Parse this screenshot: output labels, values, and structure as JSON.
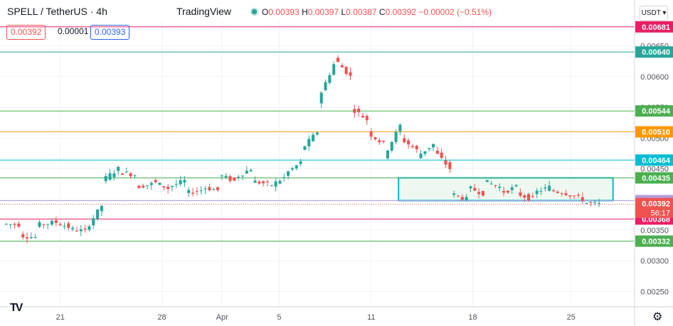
{
  "header": {
    "symbol_title": "SPELL / TetherUS · 4h",
    "brand": "TradingView",
    "ohlc": {
      "o_label": "O",
      "o_value": "0.00393",
      "h_label": "H",
      "h_value": "0.00397",
      "l_label": "L",
      "l_value": "0.00387",
      "c_label": "C",
      "c_value": "0.00392",
      "change": "−0.00002 (−0.51%)"
    },
    "bid": "0.00392",
    "spread": "0.00001",
    "ask": "0.00393",
    "currency_button": "USDT ▾"
  },
  "colors": {
    "up": "#26a69a",
    "down": "#ef5350",
    "level_orange": "#ff9800",
    "level_cyan": "#00bcd4",
    "level_pink": "#e91e63",
    "level_green": "#4caf50",
    "range_box": "#00bcd4",
    "range_fill": "#e8f5e9"
  },
  "chart_data": {
    "type": "candlestick",
    "title": "SPELL / TetherUS · 4h",
    "ylim": [
      0.00225,
      0.0069
    ],
    "y_ticks": [
      "0.00250",
      "0.00300",
      "0.00350",
      "0.00400",
      "0.00450",
      "0.00500",
      "0.00550",
      "0.00600",
      "0.00650"
    ],
    "x_tick_labels": [
      "21",
      "28",
      "Apr",
      "5",
      "11",
      "18",
      "25"
    ],
    "grid": true,
    "levels": [
      {
        "value": 0.00681,
        "label": "0.00681",
        "color": "#e91e63"
      },
      {
        "value": 0.0064,
        "label": "0.00640",
        "color": "#26a69a"
      },
      {
        "value": 0.00544,
        "label": "0.00544",
        "color": "#4caf50"
      },
      {
        "value": 0.0051,
        "label": "0.00510",
        "color": "#ff9800"
      },
      {
        "value": 0.00464,
        "label": "0.00464",
        "color": "#00bcd4"
      },
      {
        "value": 0.00435,
        "label": "0.00435",
        "color": "#4caf50"
      },
      {
        "value": 0.00398,
        "label": "0.00398",
        "color": "#b39ddb"
      },
      {
        "value": 0.00368,
        "label": "0.00368",
        "color": "#e91e63"
      },
      {
        "value": 0.00332,
        "label": "0.00332",
        "color": "#4caf50"
      }
    ],
    "last_price": {
      "value": 0.00392,
      "label": "0.00392",
      "countdown": "56:17"
    },
    "range_box": {
      "from_date": "Apr 11",
      "to_date": "Apr 25",
      "top": 0.00435,
      "bottom": 0.00398
    },
    "price_path": [
      [
        0.0036,
        0.00359
      ],
      [
        0.00342,
        0.00338
      ],
      [
        0.00358,
        0.00362
      ],
      [
        0.00365,
        0.00355
      ],
      [
        0.00352,
        0.00348
      ],
      [
        0.0035,
        0.0039
      ],
      [
        0.0043,
        0.0045
      ],
      [
        0.00445,
        0.0044
      ],
      [
        0.0042,
        0.00425
      ],
      [
        0.0043,
        0.00418
      ],
      [
        0.0042,
        0.0043
      ],
      [
        0.0041,
        0.00415
      ],
      [
        0.0042,
        0.00415
      ],
      [
        0.0044,
        0.0043
      ],
      [
        0.00435,
        0.0045
      ],
      [
        0.0043,
        0.00425
      ],
      [
        0.0042,
        0.00435
      ],
      [
        0.0044,
        0.0046
      ],
      [
        0.0048,
        0.0051
      ],
      [
        0.0056,
        0.0062
      ],
      [
        0.0063,
        0.006
      ],
      [
        0.0055,
        0.0053
      ],
      [
        0.0051,
        0.0049
      ],
      [
        0.0047,
        0.0052
      ],
      [
        0.005,
        0.0048
      ],
      [
        0.0047,
        0.0049
      ],
      [
        0.0048,
        0.0045
      ],
      [
        0.0041,
        0.004
      ],
      [
        0.0042,
        0.0041
      ],
      [
        0.0043,
        0.0042
      ],
      [
        0.0041,
        0.0042
      ],
      [
        0.0041,
        0.004
      ],
      [
        0.0041,
        0.0042
      ],
      [
        0.00415,
        0.0041
      ],
      [
        0.0041,
        0.004
      ],
      [
        0.00395,
        0.00392
      ]
    ]
  }
}
